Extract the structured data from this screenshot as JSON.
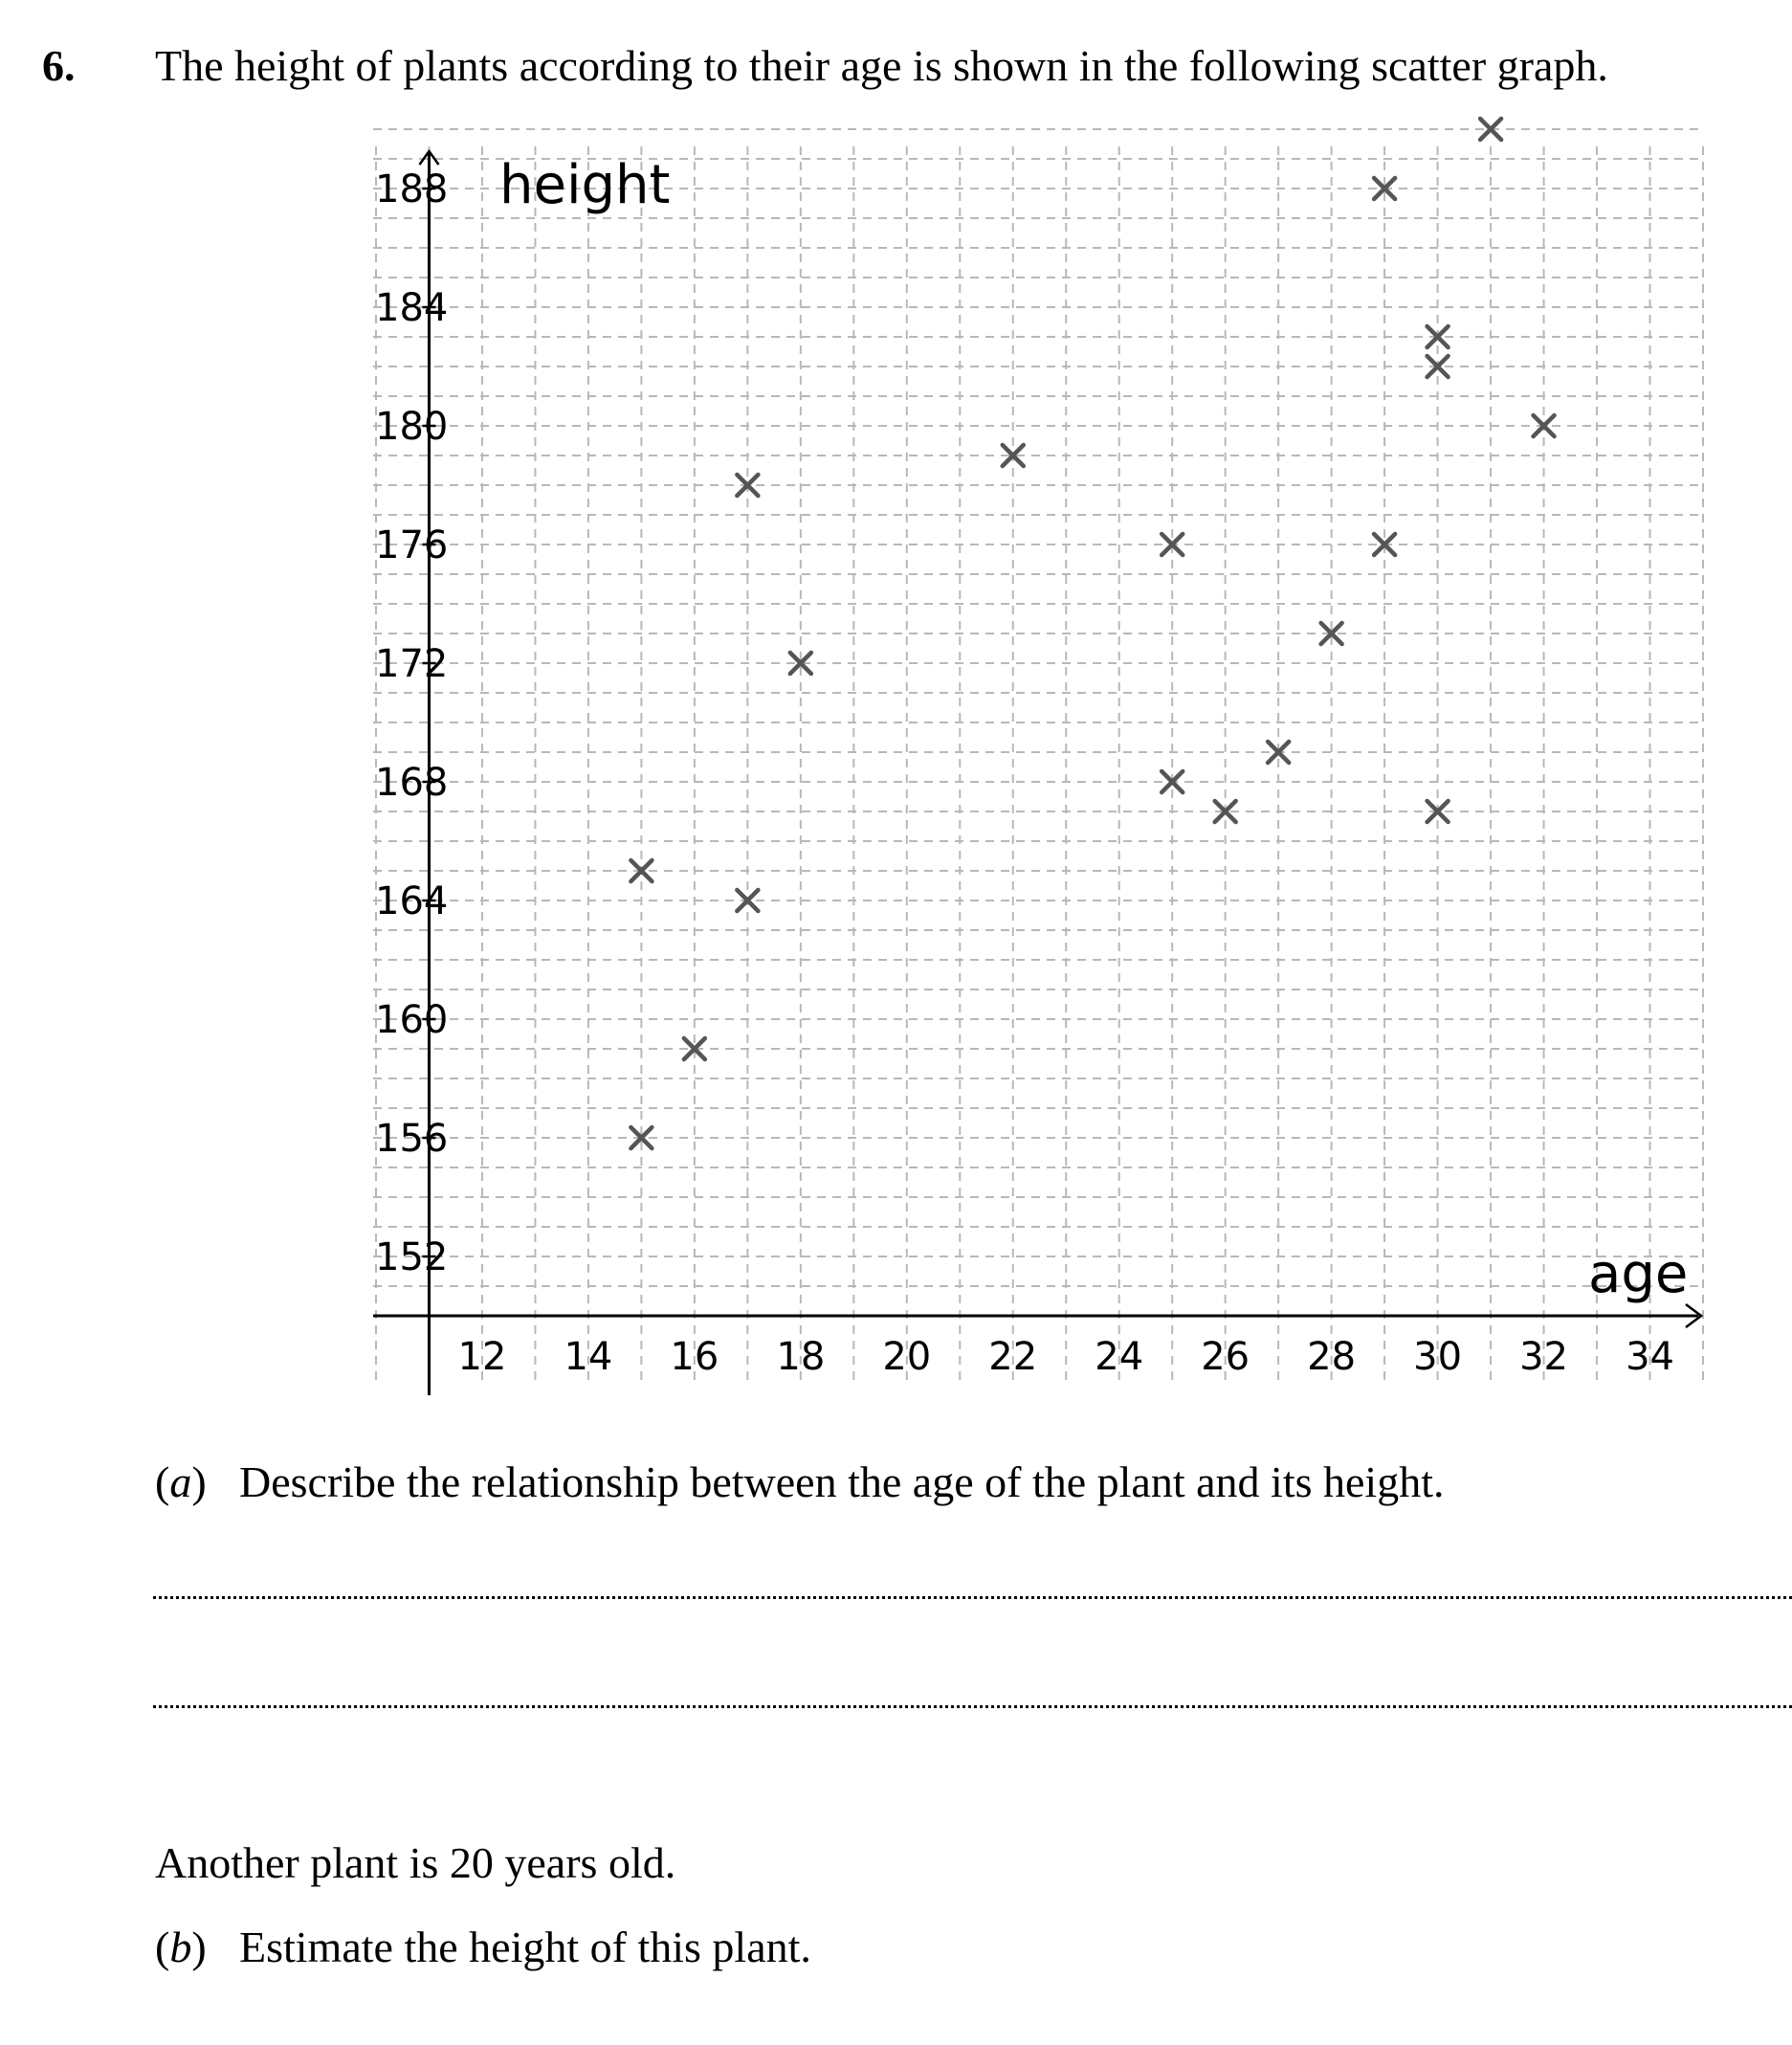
{
  "question": {
    "number": "6.",
    "text": "The height of plants according to their age is shown in the following scatter graph."
  },
  "chart_data": {
    "type": "scatter",
    "xlabel": "age",
    "ylabel": "height",
    "xlim": [
      10,
      35
    ],
    "ylim": [
      150,
      190
    ],
    "x_ticks": [
      12,
      14,
      16,
      18,
      20,
      22,
      24,
      26,
      28,
      30,
      32,
      34
    ],
    "y_ticks": [
      152,
      156,
      160,
      164,
      168,
      172,
      176,
      180,
      184,
      188
    ],
    "grid": true,
    "marker": "x",
    "points": [
      {
        "x": 15,
        "y": 165
      },
      {
        "x": 15,
        "y": 156
      },
      {
        "x": 16,
        "y": 159
      },
      {
        "x": 17,
        "y": 178
      },
      {
        "x": 17,
        "y": 164
      },
      {
        "x": 18,
        "y": 172
      },
      {
        "x": 22,
        "y": 179
      },
      {
        "x": 25,
        "y": 176
      },
      {
        "x": 25,
        "y": 168
      },
      {
        "x": 26,
        "y": 167
      },
      {
        "x": 27,
        "y": 169
      },
      {
        "x": 28,
        "y": 173
      },
      {
        "x": 29,
        "y": 188
      },
      {
        "x": 29,
        "y": 176
      },
      {
        "x": 30,
        "y": 183
      },
      {
        "x": 30,
        "y": 182
      },
      {
        "x": 30,
        "y": 167
      },
      {
        "x": 31,
        "y": 190
      },
      {
        "x": 32,
        "y": 180
      }
    ],
    "colors": {
      "marker": "#555555",
      "grid": "#b8b8b8",
      "axis": "#000000"
    }
  },
  "part_a": {
    "label_open": "(",
    "label_letter": "a",
    "label_close": ")",
    "text": "Describe the relationship between the age of the plant and its height."
  },
  "part_b_intro": "Another plant is 20 years old.",
  "part_b": {
    "label_open": "(",
    "label_letter": "b",
    "label_close": ")",
    "text": "Estimate the height of this plant."
  }
}
